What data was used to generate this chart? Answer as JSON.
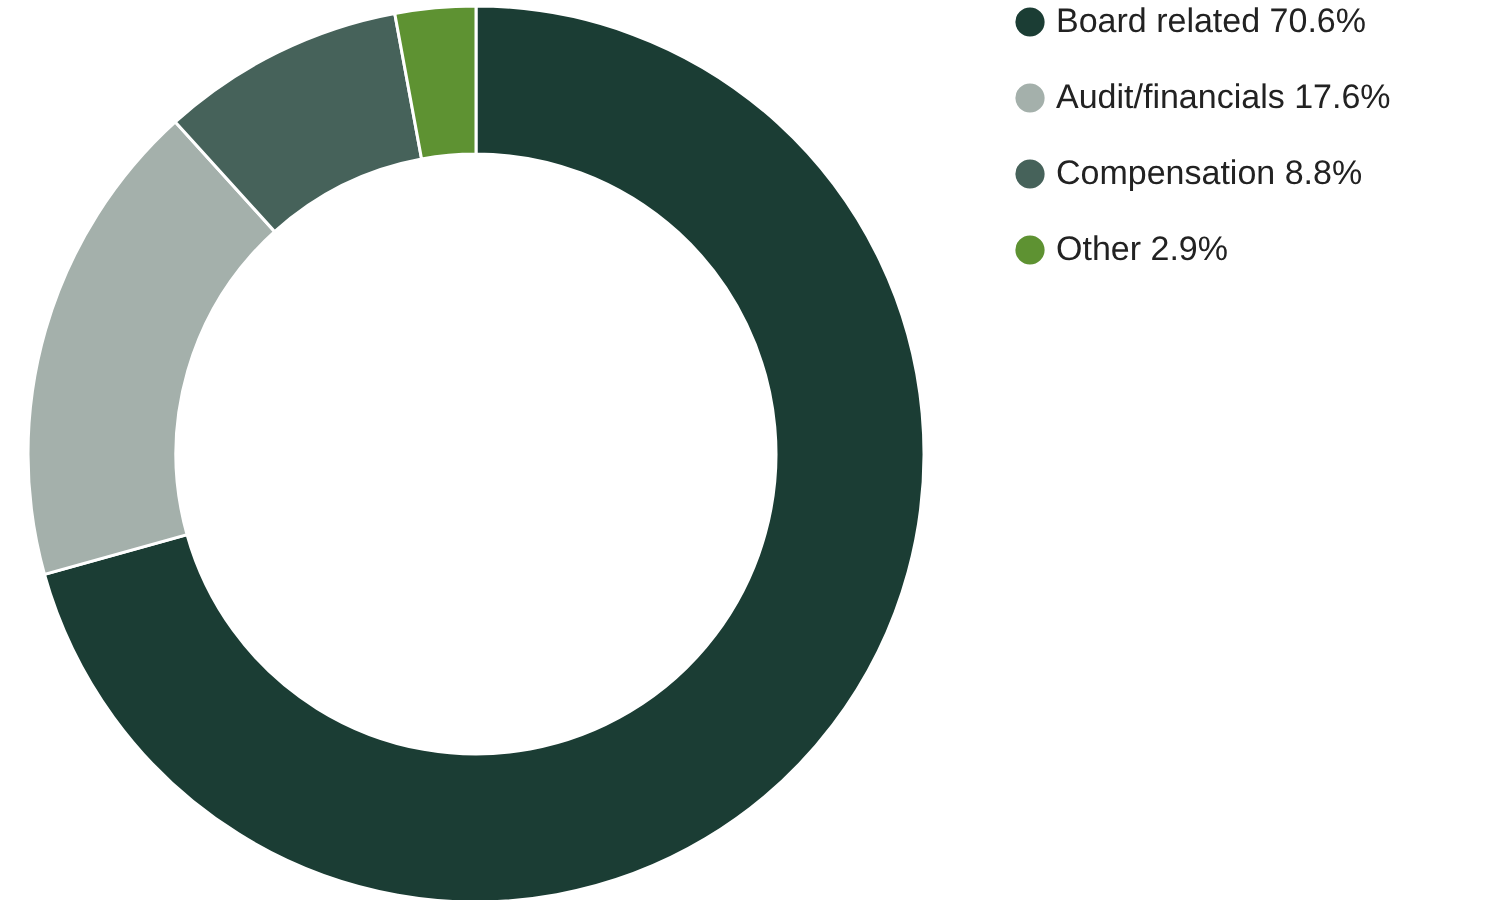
{
  "chart_data": {
    "type": "donut",
    "categories": [
      "Board related",
      "Audit/financials",
      "Compensation",
      "Other"
    ],
    "values": [
      70.6,
      17.6,
      8.8,
      2.9
    ],
    "value_labels": [
      "70.6%",
      "17.6%",
      "8.8%",
      "2.9%"
    ],
    "colors": [
      "#1b3d34",
      "#a4b0ab",
      "#46625a",
      "#5e9232"
    ],
    "legend": "right"
  }
}
